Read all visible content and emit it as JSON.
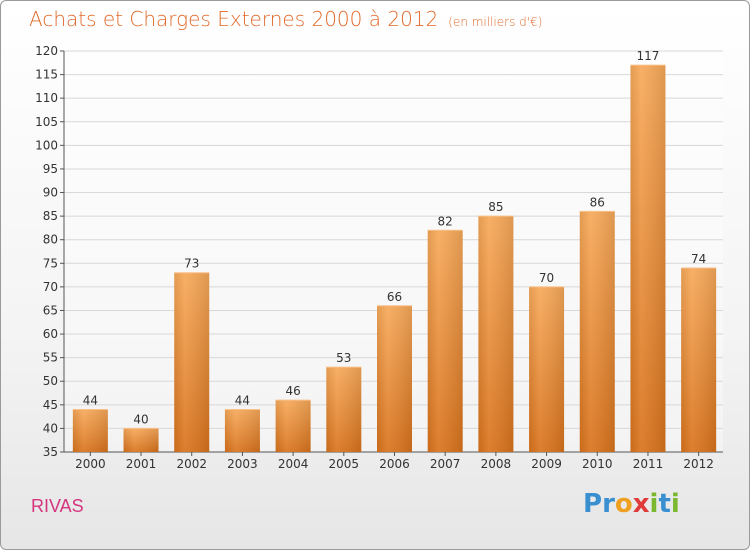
{
  "header": {
    "title": "Achats et Charges Externes 2000 à 2012",
    "subtitle": "(en milliers d'€)"
  },
  "footer": {
    "commune": "RIVAS",
    "logo_parts": [
      {
        "text": "P",
        "color": "#3a8fd0"
      },
      {
        "text": "r",
        "color": "#3a8fd0"
      },
      {
        "text": "o",
        "color": "#f0a020"
      },
      {
        "text": "x",
        "color": "#e03a3a"
      },
      {
        "text": "i",
        "color": "#7ab830"
      },
      {
        "text": "t",
        "color": "#3a8fd0"
      },
      {
        "text": "i",
        "color": "#7ab830"
      }
    ]
  },
  "chart_data": {
    "type": "bar",
    "categories": [
      "2000",
      "2001",
      "2002",
      "2003",
      "2004",
      "2005",
      "2006",
      "2007",
      "2008",
      "2009",
      "2010",
      "2011",
      "2012"
    ],
    "values": [
      44,
      40,
      73,
      44,
      46,
      53,
      66,
      82,
      85,
      70,
      86,
      117,
      74
    ],
    "title": "Achats et Charges Externes 2000 à 2012",
    "ylim": [
      35,
      120
    ],
    "yticks": [
      35,
      40,
      45,
      50,
      55,
      60,
      65,
      70,
      75,
      80,
      85,
      90,
      95,
      100,
      105,
      110,
      115,
      120
    ],
    "grid": true,
    "bar_color": "#f0922e"
  }
}
